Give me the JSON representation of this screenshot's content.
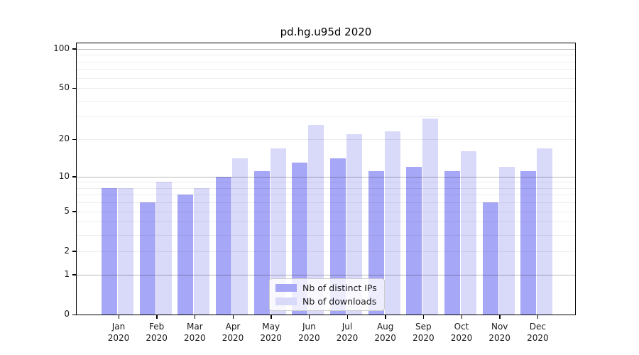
{
  "chart_data": {
    "type": "bar",
    "title": "pd.hg.u95d 2020",
    "categories": [
      [
        "Jan",
        "2020"
      ],
      [
        "Feb",
        "2020"
      ],
      [
        "Mar",
        "2020"
      ],
      [
        "Apr",
        "2020"
      ],
      [
        "May",
        "2020"
      ],
      [
        "Jun",
        "2020"
      ],
      [
        "Jul",
        "2020"
      ],
      [
        "Aug",
        "2020"
      ],
      [
        "Sep",
        "2020"
      ],
      [
        "Oct",
        "2020"
      ],
      [
        "Nov",
        "2020"
      ],
      [
        "Dec",
        "2020"
      ]
    ],
    "series": [
      {
        "name": "Nb of distinct IPs",
        "color": "#a7a7f7",
        "values": [
          8,
          6,
          7,
          10,
          11,
          13,
          14,
          11,
          12,
          11,
          6,
          11
        ]
      },
      {
        "name": "Nb of downloads",
        "color": "#d9d9fa",
        "values": [
          8,
          9,
          8,
          14,
          17,
          26,
          22,
          23,
          29,
          16,
          12,
          17
        ]
      }
    ],
    "yscale": "log10(1+x)",
    "ylim": [
      0,
      110
    ],
    "yticks": [
      100,
      50,
      20,
      10,
      5,
      2,
      1,
      0
    ],
    "grid": {
      "major": [
        1,
        10,
        100
      ],
      "minor": [
        2,
        3,
        4,
        5,
        6,
        7,
        8,
        9,
        20,
        30,
        40,
        50,
        60,
        70,
        80,
        90
      ]
    },
    "xlabel": "",
    "ylabel": "",
    "legend_position": "lower center"
  }
}
